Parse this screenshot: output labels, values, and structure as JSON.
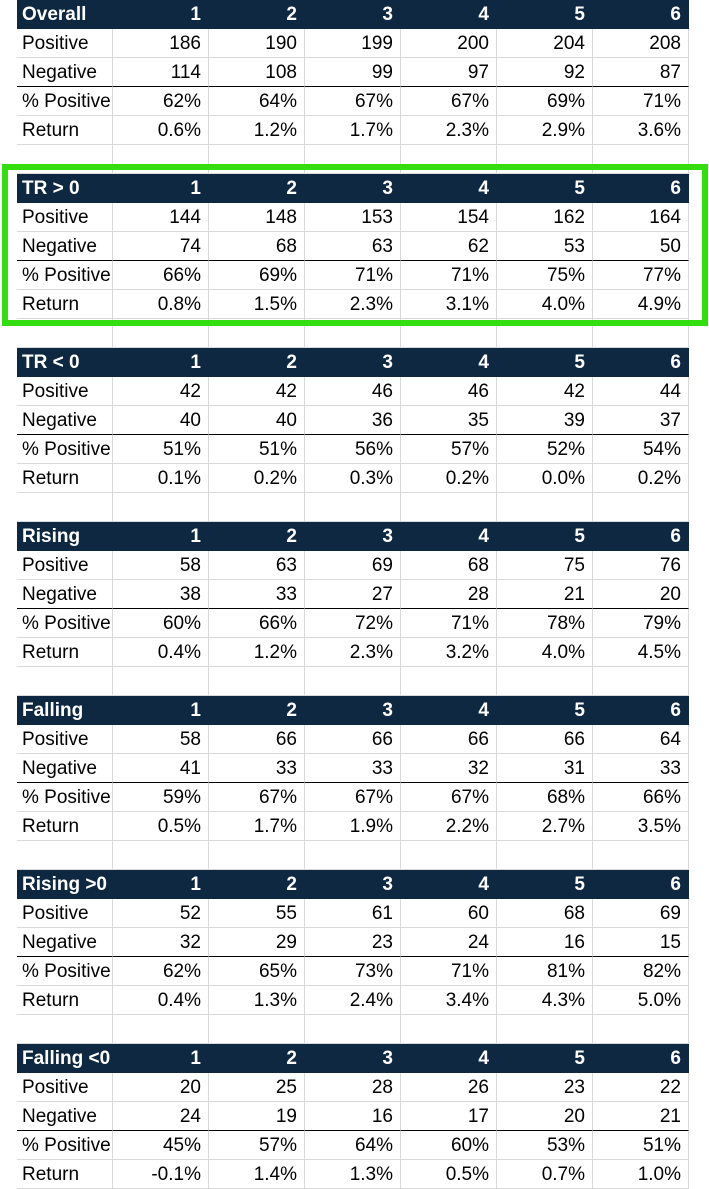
{
  "columns": [
    "1",
    "2",
    "3",
    "4",
    "5",
    "6"
  ],
  "sections": [
    {
      "title": "Overall",
      "rows": [
        {
          "label": "Positive",
          "values": [
            "186",
            "190",
            "199",
            "200",
            "204",
            "208"
          ]
        },
        {
          "label": "Negative",
          "values": [
            "114",
            "108",
            "99",
            "97",
            "92",
            "87"
          ]
        },
        {
          "label": "% Positive",
          "values": [
            "62%",
            "64%",
            "67%",
            "67%",
            "69%",
            "71%"
          ]
        },
        {
          "label": "Return",
          "values": [
            "0.6%",
            "1.2%",
            "1.7%",
            "2.3%",
            "2.9%",
            "3.6%"
          ]
        }
      ]
    },
    {
      "title": "TR > 0",
      "highlighted": true,
      "rows": [
        {
          "label": "Positive",
          "values": [
            "144",
            "148",
            "153",
            "154",
            "162",
            "164"
          ]
        },
        {
          "label": "Negative",
          "values": [
            "74",
            "68",
            "63",
            "62",
            "53",
            "50"
          ]
        },
        {
          "label": "% Positive",
          "values": [
            "66%",
            "69%",
            "71%",
            "71%",
            "75%",
            "77%"
          ]
        },
        {
          "label": "Return",
          "values": [
            "0.8%",
            "1.5%",
            "2.3%",
            "3.1%",
            "4.0%",
            "4.9%"
          ]
        }
      ]
    },
    {
      "title": "TR < 0",
      "rows": [
        {
          "label": "Positive",
          "values": [
            "42",
            "42",
            "46",
            "46",
            "42",
            "44"
          ]
        },
        {
          "label": "Negative",
          "values": [
            "40",
            "40",
            "36",
            "35",
            "39",
            "37"
          ]
        },
        {
          "label": "% Positive",
          "values": [
            "51%",
            "51%",
            "56%",
            "57%",
            "52%",
            "54%"
          ]
        },
        {
          "label": "Return",
          "values": [
            "0.1%",
            "0.2%",
            "0.3%",
            "0.2%",
            "0.0%",
            "0.2%"
          ]
        }
      ]
    },
    {
      "title": "Rising",
      "rows": [
        {
          "label": "Positive",
          "values": [
            "58",
            "63",
            "69",
            "68",
            "75",
            "76"
          ]
        },
        {
          "label": "Negative",
          "values": [
            "38",
            "33",
            "27",
            "28",
            "21",
            "20"
          ]
        },
        {
          "label": "% Positive",
          "values": [
            "60%",
            "66%",
            "72%",
            "71%",
            "78%",
            "79%"
          ]
        },
        {
          "label": "Return",
          "values": [
            "0.4%",
            "1.2%",
            "2.3%",
            "3.2%",
            "4.0%",
            "4.5%"
          ]
        }
      ]
    },
    {
      "title": "Falling",
      "rows": [
        {
          "label": "Positive",
          "values": [
            "58",
            "66",
            "66",
            "66",
            "66",
            "64"
          ]
        },
        {
          "label": "Negative",
          "values": [
            "41",
            "33",
            "33",
            "32",
            "31",
            "33"
          ]
        },
        {
          "label": "% Positive",
          "values": [
            "59%",
            "67%",
            "67%",
            "67%",
            "68%",
            "66%"
          ]
        },
        {
          "label": "Return",
          "values": [
            "0.5%",
            "1.7%",
            "1.9%",
            "2.2%",
            "2.7%",
            "3.5%"
          ]
        }
      ]
    },
    {
      "title": "Rising >0",
      "rows": [
        {
          "label": "Positive",
          "values": [
            "52",
            "55",
            "61",
            "60",
            "68",
            "69"
          ]
        },
        {
          "label": "Negative",
          "values": [
            "32",
            "29",
            "23",
            "24",
            "16",
            "15"
          ]
        },
        {
          "label": "% Positive",
          "values": [
            "62%",
            "65%",
            "73%",
            "71%",
            "81%",
            "82%"
          ]
        },
        {
          "label": "Return",
          "values": [
            "0.4%",
            "1.3%",
            "2.4%",
            "3.4%",
            "4.3%",
            "5.0%"
          ]
        }
      ]
    },
    {
      "title": "Falling <0",
      "rows": [
        {
          "label": "Positive",
          "values": [
            "20",
            "25",
            "28",
            "26",
            "23",
            "22"
          ]
        },
        {
          "label": "Negative",
          "values": [
            "24",
            "19",
            "16",
            "17",
            "20",
            "21"
          ]
        },
        {
          "label": "% Positive",
          "values": [
            "45%",
            "57%",
            "64%",
            "60%",
            "53%",
            "51%"
          ]
        },
        {
          "label": "Return",
          "values": [
            "-0.1%",
            "1.4%",
            "1.3%",
            "0.5%",
            "0.7%",
            "1.0%"
          ]
        }
      ]
    }
  ],
  "colors": {
    "header_bg": "#0e2841",
    "header_text": "#ffffff",
    "highlight_border": "#33dd10",
    "gridline": "#d9d9d9"
  }
}
